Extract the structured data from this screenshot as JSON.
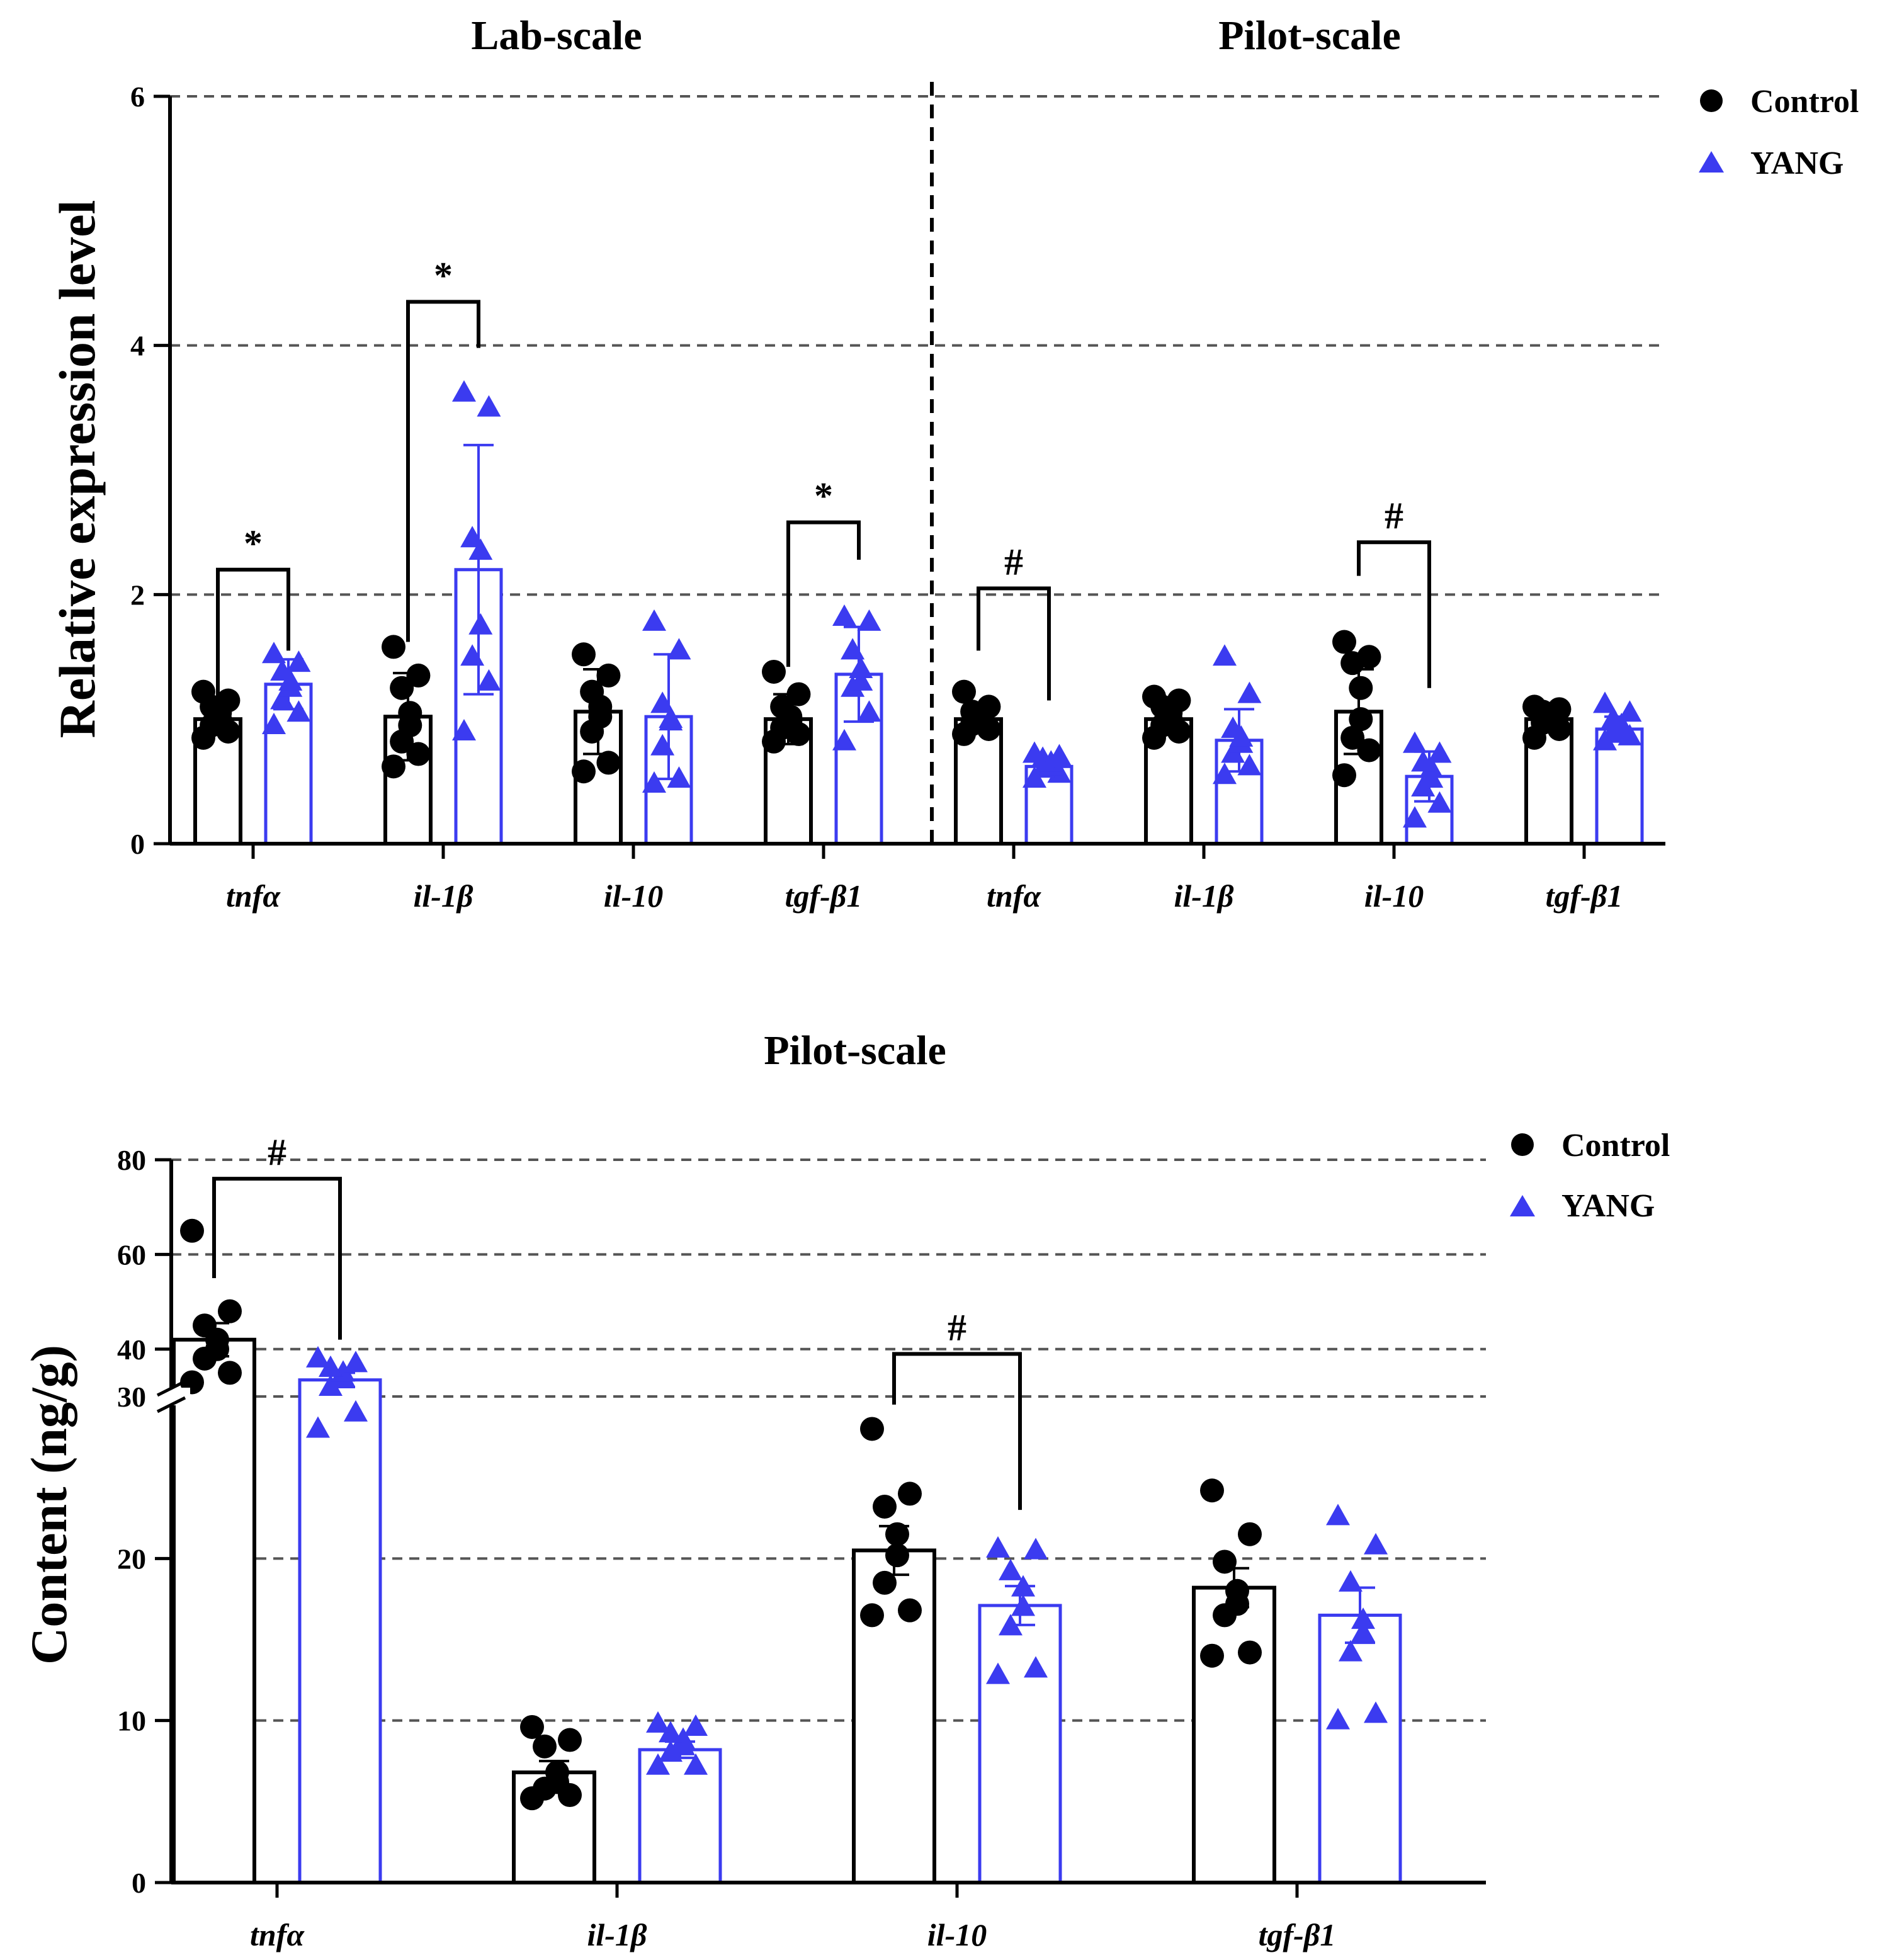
{
  "colors": {
    "control": "#000000",
    "yang": "#3b3bf0",
    "grid": "#555555"
  },
  "legend": {
    "control": "Control",
    "yang": "YANG"
  },
  "chart_data": [
    {
      "type": "bar",
      "panels": [
        "Lab-scale",
        "Pilot-scale"
      ],
      "ylabel": "Relative expression level",
      "ylim": [
        0,
        6
      ],
      "yticks": [
        "0",
        "2",
        "4",
        "6"
      ],
      "grid": "dashed horizontal",
      "legend_position": "top-right",
      "categories": [
        "tnfα",
        "il-1β",
        "il-10",
        "tgf-β1",
        "tnfα",
        "il-1β",
        "il-10",
        "tgf-β1"
      ],
      "series": [
        {
          "name": "Control",
          "values": [
            1.0,
            1.02,
            1.06,
            1.0,
            1.0,
            1.0,
            1.06,
            1.0
          ],
          "errors": [
            0.1,
            0.35,
            0.34,
            0.2,
            0.08,
            0.12,
            0.34,
            0.08
          ],
          "points": [
            [
              0.85,
              0.9,
              0.95,
              1.0,
              1.05,
              1.1,
              1.15,
              1.22
            ],
            [
              0.62,
              0.72,
              0.82,
              0.95,
              1.05,
              1.25,
              1.35,
              1.58
            ],
            [
              0.58,
              0.65,
              0.9,
              1.02,
              1.1,
              1.22,
              1.35,
              1.52
            ],
            [
              0.82,
              0.88,
              0.93,
              0.98,
              1.02,
              1.1,
              1.2,
              1.38
            ],
            [
              0.88,
              0.92,
              0.96,
              1.0,
              1.03,
              1.06,
              1.1,
              1.22
            ],
            [
              0.85,
              0.9,
              0.95,
              1.0,
              1.05,
              1.1,
              1.15,
              1.18
            ],
            [
              0.55,
              0.75,
              0.85,
              1.0,
              1.25,
              1.45,
              1.5,
              1.62
            ],
            [
              0.85,
              0.92,
              0.97,
              1.0,
              1.03,
              1.06,
              1.08,
              1.1
            ]
          ]
        },
        {
          "name": "YANG",
          "values": [
            1.28,
            2.2,
            1.02,
            1.36,
            0.62,
            0.83,
            0.54,
            0.92
          ],
          "errors": [
            0.2,
            1.0,
            0.5,
            0.38,
            0.05,
            0.25,
            0.2,
            0.1
          ],
          "points": [
            [
              0.95,
              1.05,
              1.15,
              1.25,
              1.3,
              1.38,
              1.45,
              1.52
            ],
            [
              0.9,
              1.3,
              1.5,
              1.75,
              2.35,
              2.45,
              3.5,
              3.62
            ],
            [
              0.48,
              0.52,
              0.78,
              0.98,
              1.0,
              1.12,
              1.55,
              1.78
            ],
            [
              0.82,
              1.05,
              1.25,
              1.3,
              1.4,
              1.55,
              1.78,
              1.82
            ],
            [
              0.52,
              0.56,
              0.6,
              0.62,
              0.65,
              0.68,
              0.7,
              0.72
            ],
            [
              0.55,
              0.62,
              0.72,
              0.8,
              0.85,
              0.92,
              1.2,
              1.5
            ],
            [
              0.2,
              0.32,
              0.45,
              0.52,
              0.6,
              0.65,
              0.72,
              0.8
            ],
            [
              0.82,
              0.86,
              0.9,
              0.92,
              0.95,
              1.0,
              1.05,
              1.12
            ]
          ]
        }
      ],
      "significance": [
        {
          "category_index": 0,
          "symbol": "*",
          "level": 2.2,
          "left_to": 1.05,
          "right_to": 1.55
        },
        {
          "category_index": 1,
          "symbol": "*",
          "level": 4.35,
          "left_to": 1.62,
          "right_to": 3.98
        },
        {
          "category_index": 3,
          "symbol": "*",
          "level": 2.58,
          "left_to": 1.42,
          "right_to": 2.28
        },
        {
          "category_index": 4,
          "symbol": "#",
          "level": 2.05,
          "left_to": 1.55,
          "right_to": 1.15
        },
        {
          "category_index": 6,
          "symbol": "#",
          "level": 2.42,
          "left_to": 2.15,
          "right_to": 1.25
        }
      ]
    },
    {
      "type": "bar",
      "title": "Pilot-scale",
      "ylabel": "Content (ng/g)",
      "axis_break": [
        30,
        30
      ],
      "ylim": [
        0,
        80
      ],
      "yticks": [
        "0",
        "10",
        "20",
        "30",
        "40",
        "60",
        "80"
      ],
      "grid": "dashed horizontal",
      "legend_position": "top-right",
      "categories": [
        "tnfα",
        "il-1β",
        "il-10",
        "tgf-β1"
      ],
      "series": [
        {
          "name": "Control",
          "values": [
            42,
            6.8,
            20.5,
            18.2
          ],
          "errors": [
            3.5,
            0.7,
            1.5,
            1.2
          ],
          "points": [
            [
              33,
              35,
              38,
              40,
              42,
              45,
              48,
              65
            ],
            [
              5.2,
              5.4,
              5.8,
              6.2,
              6.8,
              8.4,
              8.8,
              9.6
            ],
            [
              16.5,
              16.8,
              18.5,
              20.2,
              21.5,
              23.2,
              24.0,
              28.0
            ],
            [
              14.0,
              14.2,
              16.5,
              17.2,
              18.0,
              19.8,
              21.5,
              24.2
            ]
          ]
        },
        {
          "name": "YANG",
          "values": [
            33.5,
            8.2,
            17.1,
            16.5
          ],
          "errors": [
            1.5,
            0.5,
            1.2,
            1.7
          ],
          "points": [
            [
              28,
              29,
              32,
              34,
              35,
              36,
              37,
              38
            ],
            [
              7.2,
              7.2,
              8.0,
              8.4,
              8.8,
              9.2,
              9.6,
              9.8
            ],
            [
              12.8,
              13.2,
              15.8,
              17.0,
              18.2,
              19.2,
              20.5,
              20.6
            ],
            [
              10.0,
              10.4,
              14.2,
              15.4,
              16.2,
              18.5,
              20.8,
              22.6
            ]
          ]
        }
      ],
      "significance": [
        {
          "category_index": 0,
          "symbol": "#",
          "level": 76,
          "left_to": 55,
          "right_to": 42
        },
        {
          "category_index": 2,
          "symbol": "#",
          "level": 39,
          "left_to": 29.5,
          "right_to": 23
        }
      ]
    }
  ]
}
